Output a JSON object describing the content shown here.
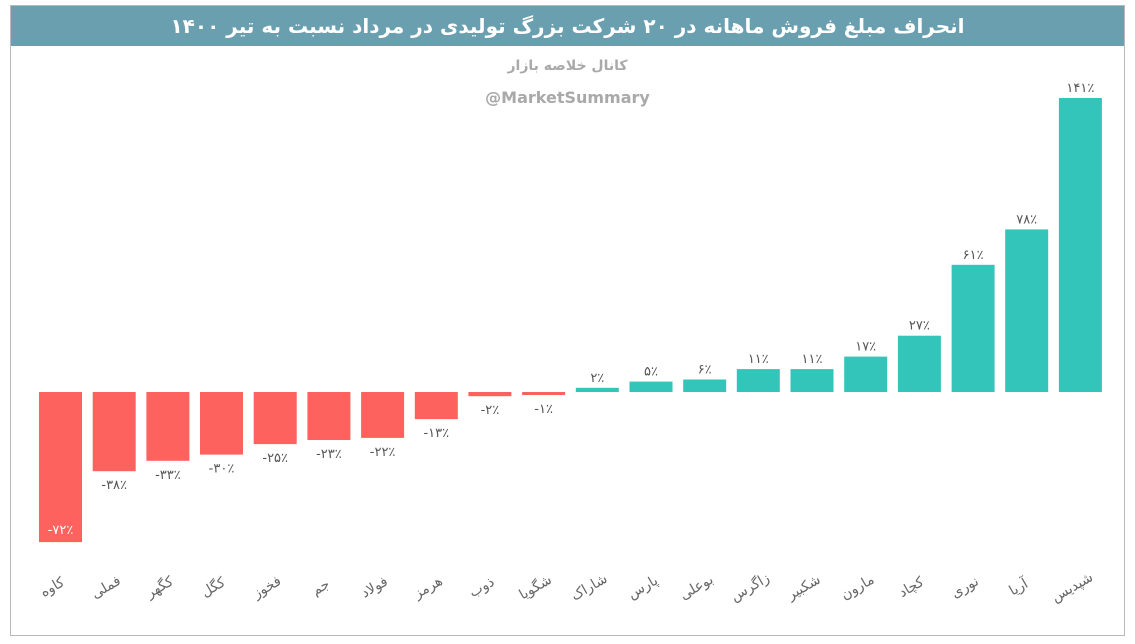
{
  "title": "انحراف مبلغ فروش ماهانه در ۲۰ شرکت بزرگ تولیدی در مرداد نسبت به تیر ۱۴۰۰",
  "subtitle": "کانال خلاصه بازار",
  "watermark": "@MarketSummary",
  "colors": {
    "negative": "#fd625e",
    "positive": "#33c5b9",
    "title_bg": "#6a9fb0"
  },
  "chart_data": {
    "type": "bar",
    "categories": [
      "کاوه",
      "فملی",
      "کگهر",
      "کگل",
      "فخوز",
      "جم",
      "فولاد",
      "هرمز",
      "ذوب",
      "شگویا",
      "شاراک",
      "پارس",
      "بوعلی",
      "زاگرس",
      "شکبیر",
      "مارون",
      "کچاد",
      "نوری",
      "آریا",
      "شپدیس"
    ],
    "values": [
      -72,
      -38,
      -33,
      -30,
      -25,
      -23,
      -22,
      -13,
      -2,
      -1,
      2,
      5,
      6,
      11,
      11,
      17,
      27,
      61,
      78,
      141
    ],
    "value_labels": [
      "-۷۲٪",
      "-۳۸٪",
      "-۳۳٪",
      "-۳۰٪",
      "-۲۵٪",
      "-۲۳٪",
      "-۲۲٪",
      "-۱۳٪",
      "-۲٪",
      "-۱٪",
      "۲٪",
      "۵٪",
      "۶٪",
      "۱۱٪",
      "۱۱٪",
      "۱۷٪",
      "۲۷٪",
      "۶۱٪",
      "۷۸٪",
      "۱۴۱٪"
    ],
    "unit": "%"
  }
}
